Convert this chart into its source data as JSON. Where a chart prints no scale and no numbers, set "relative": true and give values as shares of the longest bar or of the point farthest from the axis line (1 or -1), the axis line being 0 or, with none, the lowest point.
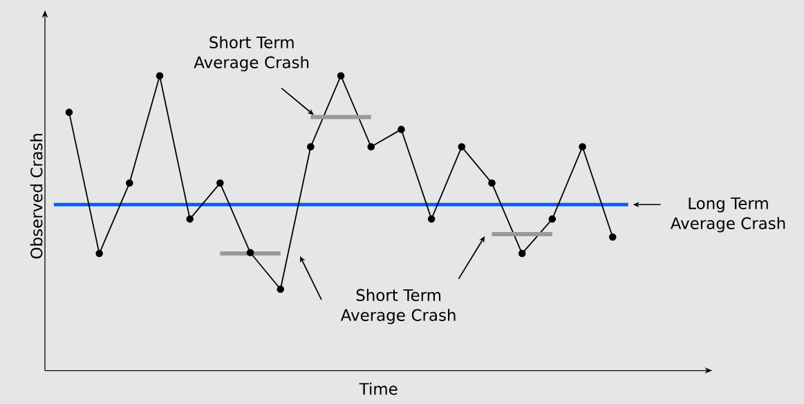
{
  "chart_data": {
    "type": "line",
    "relative": true,
    "xlabel": "Time",
    "ylabel": "Observed Crash",
    "categories": [
      null,
      null,
      null,
      null,
      null,
      null,
      null,
      null,
      null,
      null,
      null,
      null,
      null,
      null,
      null,
      null,
      null,
      null,
      null
    ],
    "series": [
      {
        "color": "#000000",
        "values": [
          0.876,
          0.397,
          0.636,
          1,
          0.514,
          0.636,
          0.4,
          0.276,
          0.759,
          1,
          0.759,
          0.818,
          0.514,
          0.759,
          0.636,
          0.397,
          0.514,
          0.759,
          0.453
        ]
      },
      {
        "type": "line",
        "marker": "none",
        "color": "#999999",
        "values": [
          null,
          null,
          null,
          null,
          null,
          0.397,
          0.397,
          0.397,
          null,
          null,
          null,
          null,
          null,
          null,
          null,
          null,
          null,
          null,
          null
        ]
      },
      {
        "type": "line",
        "marker": "none",
        "color": "#999999",
        "values": [
          null,
          null,
          null,
          null,
          null,
          null,
          null,
          null,
          0.86,
          0.86,
          0.86,
          null,
          null,
          null,
          null,
          null,
          null,
          null,
          null
        ]
      },
      {
        "type": "line",
        "marker": "none",
        "color": "#999999",
        "values": [
          null,
          null,
          null,
          null,
          null,
          null,
          null,
          null,
          null,
          null,
          null,
          null,
          null,
          null,
          0.463,
          0.463,
          0.463,
          null,
          null
        ]
      }
    ],
    "ref_lines": [
      {
        "axis": "y",
        "value": 0.563,
        "label": "Long Term Average Crash",
        "color": "#0a5cff"
      }
    ],
    "annotations": [
      "Short Term Average Crash",
      "Short Term Average Crash"
    ],
    "marker": "circle",
    "line_style": "solid"
  }
}
